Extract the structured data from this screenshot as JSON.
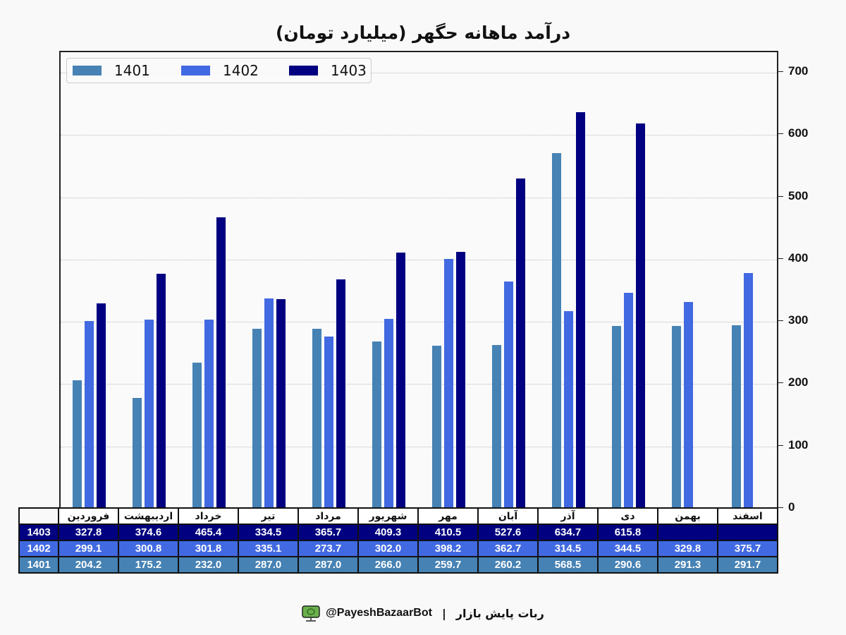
{
  "title": "درآمد ماهانه حگهر (میلیارد تومان)",
  "colors": {
    "1401": "#4682b4",
    "1402": "#4169e1",
    "1403": "#000080"
  },
  "legend": [
    {
      "label": "1401",
      "color": "#4682b4"
    },
    {
      "label": "1402",
      "color": "#4169e1"
    },
    {
      "label": "1403",
      "color": "#000080"
    }
  ],
  "yaxis": {
    "ticks": [
      "0",
      "100",
      "200",
      "300",
      "400",
      "500",
      "600",
      "700"
    ]
  },
  "table": {
    "months": [
      "فروردین",
      "اردیبهشت",
      "خرداد",
      "تیر",
      "مرداد",
      "شهریور",
      "مهر",
      "آبان",
      "آذر",
      "دی",
      "بهمن",
      "اسفند"
    ],
    "rows": [
      {
        "label": "1403",
        "values": [
          "327.8",
          "374.6",
          "465.4",
          "334.5",
          "365.7",
          "409.3",
          "410.5",
          "527.6",
          "634.7",
          "615.8",
          "",
          ""
        ]
      },
      {
        "label": "1402",
        "values": [
          "299.1",
          "300.8",
          "301.8",
          "335.1",
          "273.7",
          "302.0",
          "398.2",
          "362.7",
          "314.5",
          "344.5",
          "329.8",
          "375.7"
        ]
      },
      {
        "label": "1401",
        "values": [
          "204.2",
          "175.2",
          "232.0",
          "287.0",
          "287.0",
          "266.0",
          "259.7",
          "260.2",
          "568.5",
          "290.6",
          "291.3",
          "291.7"
        ]
      }
    ]
  },
  "footer": {
    "handle": "@PayeshBazaarBot",
    "separator": "|",
    "name": "ربات پایش بازار"
  },
  "chart_data": {
    "type": "bar",
    "title": "درآمد ماهانه حگهر (میلیارد تومان)",
    "xlabel": "",
    "ylabel": "",
    "ylim": [
      0,
      730
    ],
    "yticks": [
      0,
      100,
      200,
      300,
      400,
      500,
      600,
      700
    ],
    "grid": true,
    "legend_position": "upper left",
    "categories": [
      "فروردین",
      "اردیبهشت",
      "خرداد",
      "تیر",
      "مرداد",
      "شهریور",
      "مهر",
      "آبان",
      "آذر",
      "دی",
      "بهمن",
      "اسفند"
    ],
    "series": [
      {
        "name": "1401",
        "color": "#4682b4",
        "values": [
          204.2,
          175.2,
          232.0,
          287.0,
          287.0,
          266.0,
          259.7,
          260.2,
          568.5,
          290.6,
          291.3,
          291.7
        ]
      },
      {
        "name": "1402",
        "color": "#4169e1",
        "values": [
          299.1,
          300.8,
          301.8,
          335.1,
          273.7,
          302.0,
          398.2,
          362.7,
          314.5,
          344.5,
          329.8,
          375.7
        ]
      },
      {
        "name": "1403",
        "color": "#000080",
        "values": [
          327.8,
          374.6,
          465.4,
          334.5,
          365.7,
          409.3,
          410.5,
          527.6,
          634.7,
          615.8,
          null,
          null
        ]
      }
    ]
  }
}
